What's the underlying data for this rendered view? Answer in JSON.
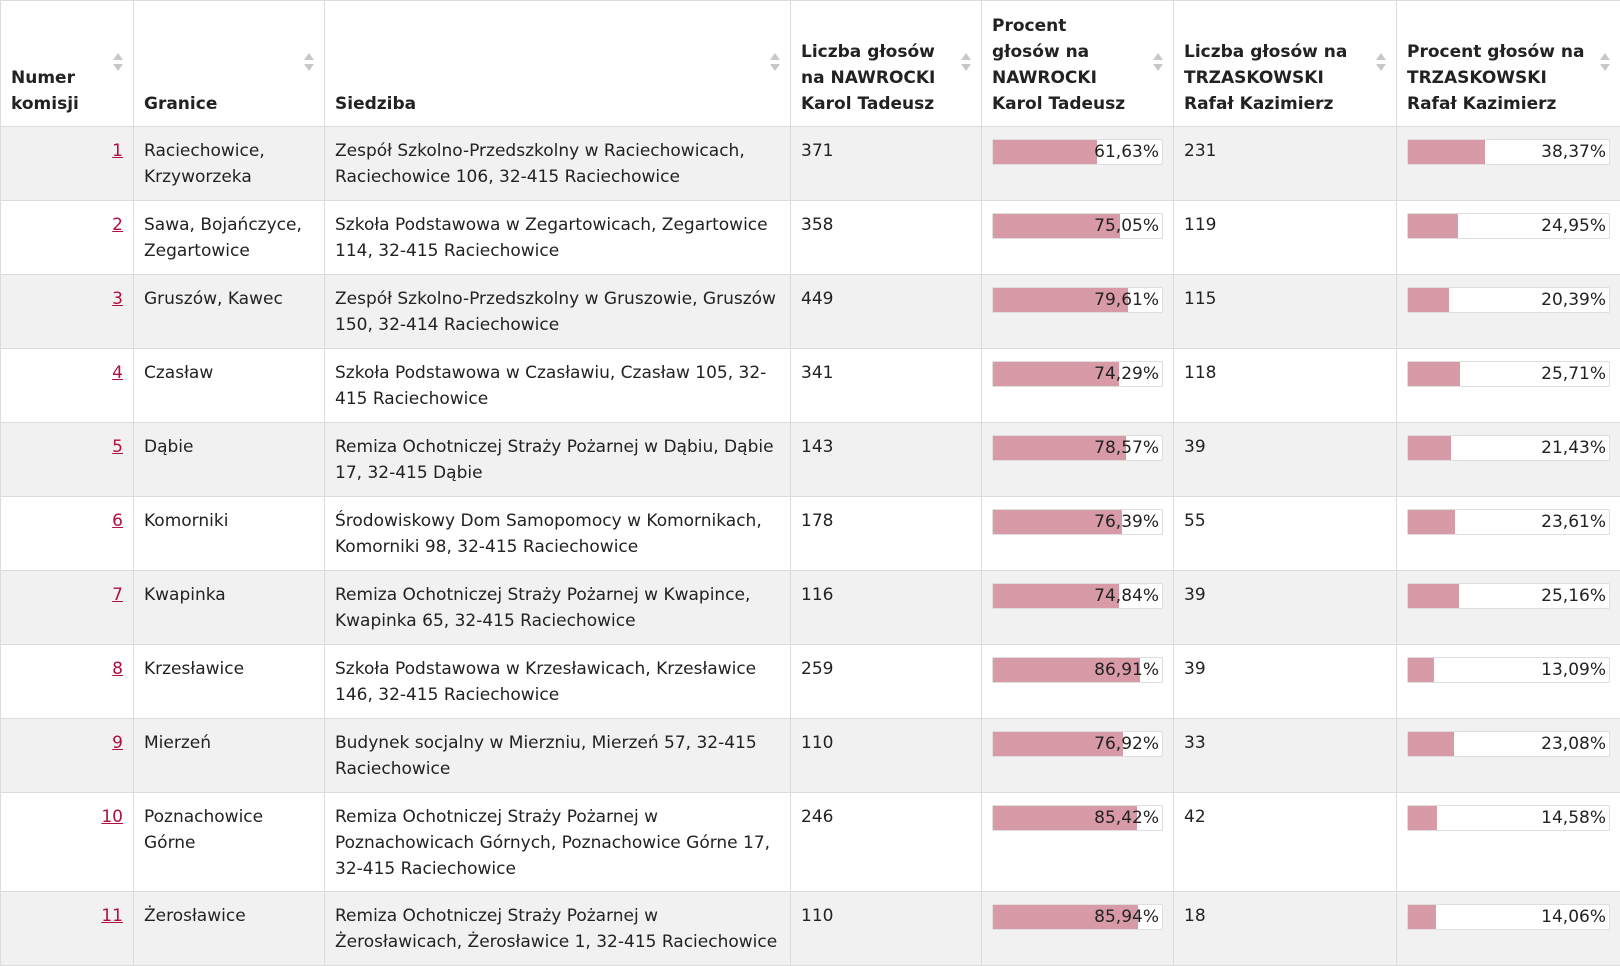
{
  "columns": [
    "Numer komisji",
    "Granice",
    "Siedziba",
    "Liczba głosów na NAWROCKI Karol Tadeusz",
    "Procent głosów na NAWROCKI Karol Tadeusz",
    "Liczba głosów na TRZASKOWSKI Rafał Kazimierz",
    "Procent głosów na TRZASKOWSKI Rafał Kazimierz"
  ],
  "colors": {
    "bar": "#d99aa8",
    "link": "#b0103c",
    "stripe": "#f1f1f1"
  },
  "rows": [
    {
      "num": "1",
      "granice": "Raciechowice, Krzyworzeka",
      "siedziba": "Zespół Szkolno-Przedszkolny w Raciechowicach, Raciechowice 106, 32-415 Raciechowice",
      "n_votes": "371",
      "n_pct": "61,63%",
      "n_frac": 0.6163,
      "t_votes": "231",
      "t_pct": "38,37%",
      "t_frac": 0.3837
    },
    {
      "num": "2",
      "granice": "Sawa, Bojańczyce, Zegartowice",
      "siedziba": "Szkoła Podstawowa w Zegartowicach, Zegartowice 114, 32-415 Raciechowice",
      "n_votes": "358",
      "n_pct": "75,05%",
      "n_frac": 0.7505,
      "t_votes": "119",
      "t_pct": "24,95%",
      "t_frac": 0.2495
    },
    {
      "num": "3",
      "granice": "Gruszów, Kawec",
      "siedziba": "Zespół Szkolno-Przedszkolny w Gruszowie, Gruszów 150, 32-414 Raciechowice",
      "n_votes": "449",
      "n_pct": "79,61%",
      "n_frac": 0.7961,
      "t_votes": "115",
      "t_pct": "20,39%",
      "t_frac": 0.2039
    },
    {
      "num": "4",
      "granice": "Czasław",
      "siedziba": "Szkoła Podstawowa w Czasławiu, Czasław 105, 32-415 Raciechowice",
      "n_votes": "341",
      "n_pct": "74,29%",
      "n_frac": 0.7429,
      "t_votes": "118",
      "t_pct": "25,71%",
      "t_frac": 0.2571
    },
    {
      "num": "5",
      "granice": "Dąbie",
      "siedziba": "Remiza Ochotniczej Straży Pożarnej w Dąbiu, Dąbie 17, 32-415 Dąbie",
      "n_votes": "143",
      "n_pct": "78,57%",
      "n_frac": 0.7857,
      "t_votes": "39",
      "t_pct": "21,43%",
      "t_frac": 0.2143
    },
    {
      "num": "6",
      "granice": "Komorniki",
      "siedziba": "Środowiskowy Dom Samopomocy w Komornikach, Komorniki 98, 32-415 Raciechowice",
      "n_votes": "178",
      "n_pct": "76,39%",
      "n_frac": 0.7639,
      "t_votes": "55",
      "t_pct": "23,61%",
      "t_frac": 0.2361
    },
    {
      "num": "7",
      "granice": "Kwapinka",
      "siedziba": "Remiza Ochotniczej Straży Pożarnej w Kwapince, Kwapinka 65, 32-415 Raciechowice",
      "n_votes": "116",
      "n_pct": "74,84%",
      "n_frac": 0.7484,
      "t_votes": "39",
      "t_pct": "25,16%",
      "t_frac": 0.2516
    },
    {
      "num": "8",
      "granice": "Krzesławice",
      "siedziba": "Szkoła Podstawowa w Krzesławicach, Krzesławice 146, 32-415 Raciechowice",
      "n_votes": "259",
      "n_pct": "86,91%",
      "n_frac": 0.8691,
      "t_votes": "39",
      "t_pct": "13,09%",
      "t_frac": 0.1309
    },
    {
      "num": "9",
      "granice": "Mierzeń",
      "siedziba": "Budynek socjalny w Mierzniu, Mierzeń 57, 32-415 Raciechowice",
      "n_votes": "110",
      "n_pct": "76,92%",
      "n_frac": 0.7692,
      "t_votes": "33",
      "t_pct": "23,08%",
      "t_frac": 0.2308
    },
    {
      "num": "10",
      "granice": "Poznachowice Górne",
      "siedziba": "Remiza Ochotniczej Straży Pożarnej w Poznachowicach Górnych, Poznachowice Górne 17, 32-415 Raciechowice",
      "n_votes": "246",
      "n_pct": "85,42%",
      "n_frac": 0.8542,
      "t_votes": "42",
      "t_pct": "14,58%",
      "t_frac": 0.1458
    },
    {
      "num": "11",
      "granice": "Żerosławice",
      "siedziba": "Remiza Ochotniczej Straży Pożarnej w Żerosławicach, Żerosławice 1, 32-415 Raciechowice",
      "n_votes": "110",
      "n_pct": "85,94%",
      "n_frac": 0.8594,
      "t_votes": "18",
      "t_pct": "14,06%",
      "t_frac": 0.1406
    }
  ]
}
